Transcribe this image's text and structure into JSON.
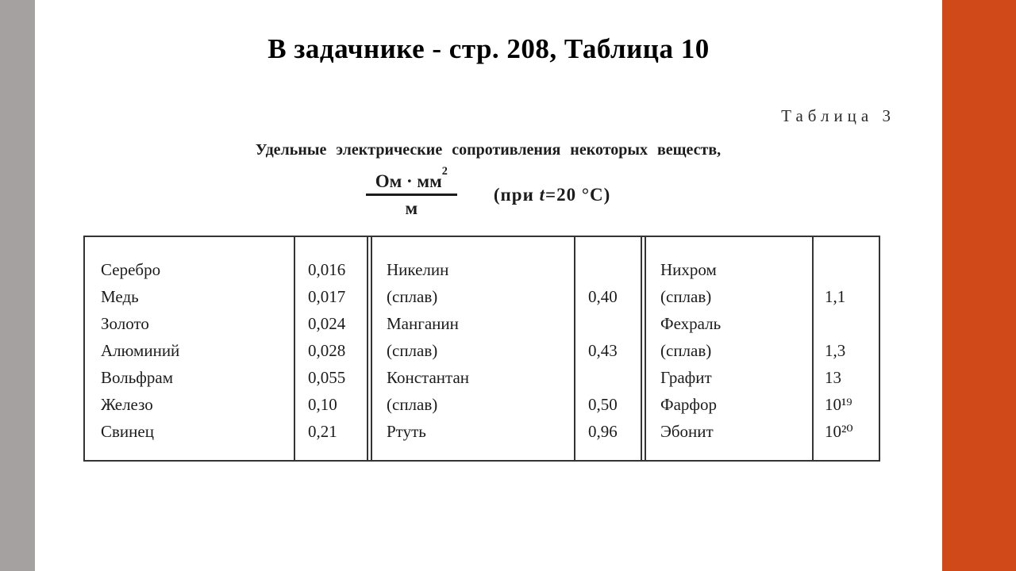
{
  "slide": {
    "title": "В задачнике - стр. 208, Таблица 10"
  },
  "scan": {
    "table_label": "Таблица 3",
    "caption": "Удельные электрические сопротивления некоторых веществ,",
    "formula": {
      "numerator": "Ом · мм",
      "exponent": "2",
      "denominator": "м",
      "condition_pre": "(при ",
      "condition_var": "t",
      "condition_post": "=20 °C)"
    },
    "table": {
      "groups": [
        {
          "rows": [
            {
              "name": "Серебро",
              "value": "0,016"
            },
            {
              "name": "Медь",
              "value": "0,017"
            },
            {
              "name": "Золото",
              "value": "0,024"
            },
            {
              "name": "Алюминий",
              "value": "0,028"
            },
            {
              "name": "Вольфрам",
              "value": "0,055"
            },
            {
              "name": "Железо",
              "value": "0,10"
            },
            {
              "name": "Свинец",
              "value": "0,21"
            }
          ]
        },
        {
          "rows": [
            {
              "name": "Никелин",
              "value": ""
            },
            {
              "name": "(сплав)",
              "value": "0,40"
            },
            {
              "name": "Манганин",
              "value": ""
            },
            {
              "name": "(сплав)",
              "value": "0,43"
            },
            {
              "name": "Константан",
              "value": ""
            },
            {
              "name": "(сплав)",
              "value": "0,50"
            },
            {
              "name": "Ртуть",
              "value": "0,96"
            }
          ]
        },
        {
          "rows": [
            {
              "name": "Нихром",
              "value": ""
            },
            {
              "name": "(сплав)",
              "value": "1,1"
            },
            {
              "name": "Фехраль",
              "value": ""
            },
            {
              "name": "(сплав)",
              "value": "1,3"
            },
            {
              "name": "Графит",
              "value": "13"
            },
            {
              "name": "Фарфор",
              "value": "10¹⁹"
            },
            {
              "name": "Эбонит",
              "value": "10²⁰"
            }
          ]
        }
      ]
    }
  },
  "colors": {
    "left_bar": "#a5a1a0",
    "right_bar": "#d04a19",
    "scan_ink": "#1c1c1c"
  }
}
